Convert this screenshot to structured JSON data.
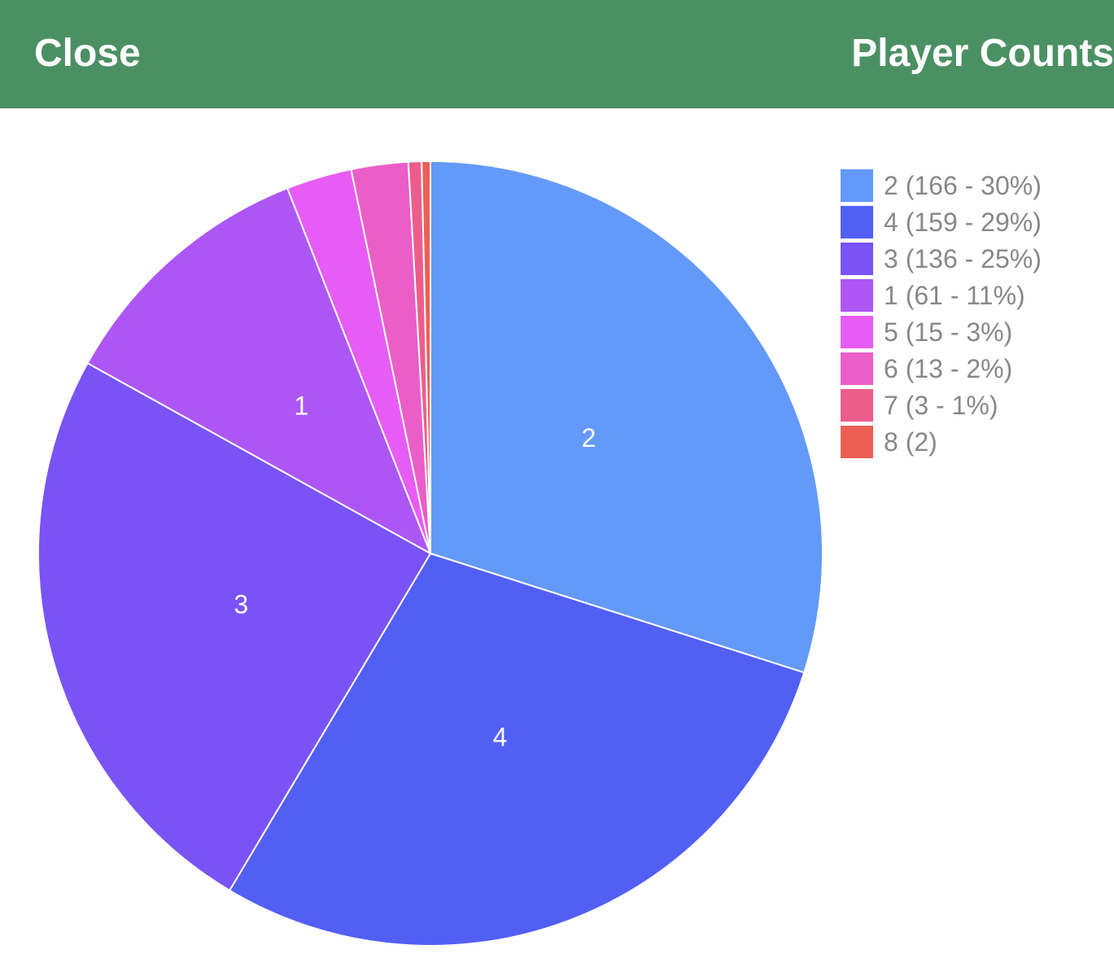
{
  "header": {
    "close_label": "Close",
    "title": "Player Counts"
  },
  "chart_data": {
    "type": "pie",
    "start_angle": "12 o'clock",
    "direction": "clockwise",
    "slices": [
      {
        "label": "2",
        "value": 166,
        "percent": 30,
        "legend": "2 (166 - 30%)",
        "color": "#6399f8",
        "show_label": true
      },
      {
        "label": "4",
        "value": 159,
        "percent": 29,
        "legend": "4 (159 - 29%)",
        "color": "#525ff5",
        "show_label": true
      },
      {
        "label": "3",
        "value": 136,
        "percent": 25,
        "legend": "3 (136 - 25%)",
        "color": "#7953f6",
        "show_label": true
      },
      {
        "label": "1",
        "value": 61,
        "percent": 11,
        "legend": "1 (61 - 11%)",
        "color": "#ae56f5",
        "show_label": true
      },
      {
        "label": "5",
        "value": 15,
        "percent": 3,
        "legend": "5 (15 - 3%)",
        "color": "#e75cf5",
        "show_label": false
      },
      {
        "label": "6",
        "value": 13,
        "percent": 2,
        "legend": "6 (13 - 2%)",
        "color": "#eb5ec8",
        "show_label": false
      },
      {
        "label": "7",
        "value": 3,
        "percent": 1,
        "legend": "7 (3 - 1%)",
        "color": "#ed5d8c",
        "show_label": false
      },
      {
        "label": "8",
        "value": 2,
        "legend": "8 (2)",
        "color": "#ec5f55",
        "show_label": false
      }
    ],
    "legend_position": "right"
  }
}
